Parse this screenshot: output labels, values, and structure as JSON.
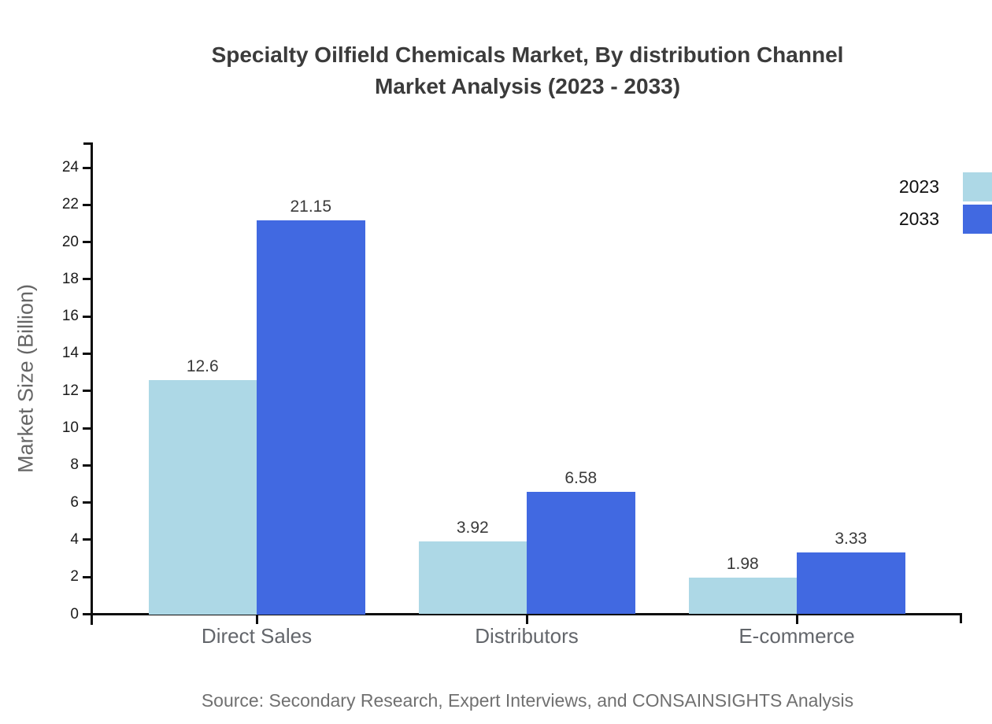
{
  "title": {
    "line1": "Specialty Oilfield Chemicals Market, By distribution Channel",
    "line2": "Market Analysis (2023 - 2033)"
  },
  "chart_data": {
    "type": "bar",
    "categories": [
      "Direct Sales",
      "Distributors",
      "E-commerce"
    ],
    "series": [
      {
        "name": "2023",
        "color": "#ADD8E6",
        "values": [
          12.6,
          3.92,
          1.98
        ]
      },
      {
        "name": "2033",
        "color": "#4169E1",
        "values": [
          21.15,
          6.58,
          3.33
        ]
      }
    ],
    "value_labels": {
      "2023": [
        "12.6",
        "3.92",
        "1.98"
      ],
      "2033": [
        "21.15",
        "6.58",
        "3.33"
      ]
    },
    "title": "Specialty Oilfield Chemicals Market, By distribution Channel Market Analysis (2023 - 2033)",
    "xlabel": "",
    "ylabel": "Market Size (Billion)",
    "ylim": [
      0,
      24
    ],
    "ytick_step": 2,
    "grid": false,
    "legend_position": "top-right",
    "axis_color": "#0d0d0d"
  },
  "source": "Source: Secondary Research, Expert Interviews, and CONSAINSIGHTS Analysis"
}
